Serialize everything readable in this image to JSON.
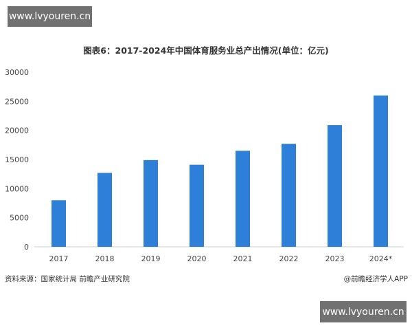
{
  "watermark_top": "www.lvyouren.cn",
  "watermark_bottom": "www.lvyouren.cn",
  "footer": {
    "source": "资料来源：国家统计局 前瞻产业研究院",
    "brand": "@前瞻经济学人APP"
  },
  "chart_data": {
    "type": "bar",
    "title": "图表6：2017-2024年中国体育服务业总产出情况(单位：亿元)",
    "categories": [
      "2017",
      "2018",
      "2019",
      "2020",
      "2021",
      "2022",
      "2023",
      "2024*"
    ],
    "values": [
      8000,
      12700,
      14900,
      14100,
      16500,
      17700,
      20900,
      26000
    ],
    "ylim": [
      0,
      30000
    ],
    "yticks": [
      0,
      5000,
      10000,
      15000,
      20000,
      25000,
      30000
    ],
    "bar_color": "#2e7fd8",
    "grid": false,
    "legend": "none"
  }
}
